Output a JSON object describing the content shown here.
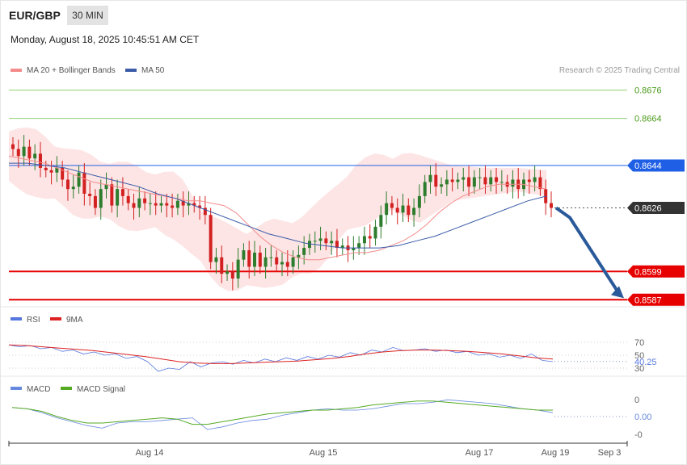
{
  "header": {
    "symbol": "EUR/GBP",
    "timeframe": "30 MIN",
    "timestamp": "Monday, August 18, 2025 10:45:51 AM CET",
    "credit": "Research © 2025 Trading Central"
  },
  "colors": {
    "ma20": "#f48b8b",
    "ma50": "#3b5ca8",
    "band_fill": "#fde0e0",
    "resistance": "#8fcf6f",
    "pivot": "#1f5fe6",
    "support": "#e60000",
    "current": "#333333",
    "arrow": "#2a5a9a",
    "rsi": "#5577dd",
    "rsi_ma": "#dd2222",
    "macd": "#6688dd",
    "macd_signal": "#55aa22",
    "candle_up": "#2e7d2e",
    "candle_down": "#d32020"
  },
  "legend": {
    "ma20": "MA 20 + Bollinger Bands",
    "ma50": "MA 50",
    "rsi": "RSI",
    "rsi_ma": "9MA",
    "macd": "MACD",
    "macd_signal": "MACD Signal"
  },
  "chart_data": {
    "type": "candlestick",
    "price_range": [
      0.8584,
      0.868
    ],
    "price_levels": [
      {
        "label": "0.8676",
        "value": 0.8676,
        "kind": "resistance"
      },
      {
        "label": "0.8664",
        "value": 0.8664,
        "kind": "resistance"
      },
      {
        "label": "0.8644",
        "value": 0.8644,
        "kind": "pivot"
      },
      {
        "label": "0.8626",
        "value": 0.8626,
        "kind": "current"
      },
      {
        "label": "0.8599",
        "value": 0.8599,
        "kind": "support"
      },
      {
        "label": "0.8587",
        "value": 0.8587,
        "kind": "support"
      }
    ],
    "price_path": [
      0.8651,
      0.8648,
      0.8652,
      0.8647,
      0.8649,
      0.8643,
      0.8642,
      0.8641,
      0.8643,
      0.8638,
      0.8634,
      0.8635,
      0.8641,
      0.8632,
      0.8631,
      0.8626,
      0.8634,
      0.8636,
      0.8627,
      0.8634,
      0.8631,
      0.8628,
      0.8626,
      0.863,
      0.8628,
      0.8628,
      0.8627,
      0.8628,
      0.8627,
      0.8626,
      0.8629,
      0.8627,
      0.8628,
      0.8627,
      0.8626,
      0.8623,
      0.8603,
      0.8605,
      0.8598,
      0.8599,
      0.8596,
      0.8604,
      0.8608,
      0.8601,
      0.8607,
      0.8601,
      0.8605,
      0.8605,
      0.8602,
      0.8603,
      0.8601,
      0.8605,
      0.8606,
      0.8609,
      0.8612,
      0.8612,
      0.8613,
      0.8611,
      0.8612,
      0.8609,
      0.861,
      0.8608,
      0.8609,
      0.8611,
      0.8614,
      0.8613,
      0.8618,
      0.8623,
      0.8628,
      0.8626,
      0.8624,
      0.8627,
      0.8623,
      0.8626,
      0.8631,
      0.8637,
      0.864,
      0.8635,
      0.8636,
      0.8638,
      0.8637,
      0.8638,
      0.8639,
      0.8635,
      0.8639,
      0.8639,
      0.8636,
      0.8639,
      0.8637,
      0.8637,
      0.8635,
      0.8638,
      0.8634,
      0.8638,
      0.8637,
      0.8639,
      0.8634,
      0.8628,
      0.8626
    ],
    "ma20": [
      0.8648,
      0.8647,
      0.8646,
      0.8645,
      0.8643,
      0.8641,
      0.8639,
      0.8637,
      0.8636,
      0.8635,
      0.8634,
      0.8633,
      0.8632,
      0.8631,
      0.863,
      0.8629,
      0.8629,
      0.8628,
      0.8627,
      0.8624,
      0.8619,
      0.8614,
      0.861,
      0.8607,
      0.8605,
      0.8604,
      0.8604,
      0.8605,
      0.8606,
      0.8607,
      0.8607,
      0.8608,
      0.861,
      0.8612,
      0.8615,
      0.8619,
      0.8624,
      0.8628,
      0.8631,
      0.8633,
      0.8635,
      0.8636,
      0.8636,
      0.8636,
      0.8635,
      0.8634
    ],
    "ma50": [
      0.8645,
      0.8645,
      0.8644,
      0.8643,
      0.8641,
      0.8639,
      0.8637,
      0.8635,
      0.8632,
      0.863,
      0.8627,
      0.8624,
      0.8621,
      0.8618,
      0.8615,
      0.8613,
      0.8611,
      0.861,
      0.8609,
      0.8609,
      0.8609,
      0.861,
      0.8612,
      0.8614,
      0.8617,
      0.862,
      0.8623,
      0.8626,
      0.8629,
      0.8631
    ],
    "forecast": {
      "from": 0.8626,
      "to": 0.8588
    },
    "rsi": {
      "current_label": "40.25",
      "current": 40.25,
      "levels": [
        {
          "label": "70",
          "value": 70
        },
        {
          "label": "50",
          "value": 50
        },
        {
          "label": "30",
          "value": 30
        }
      ],
      "range": [
        20,
        100
      ],
      "rsi_path": [
        66,
        63,
        65,
        60,
        62,
        56,
        58,
        52,
        55,
        50,
        52,
        45,
        48,
        40,
        25,
        30,
        28,
        40,
        32,
        38,
        40,
        36,
        42,
        38,
        44,
        40,
        46,
        42,
        48,
        44,
        50,
        47,
        54,
        50,
        58,
        55,
        62,
        57,
        58,
        60,
        56,
        58,
        54,
        56,
        50,
        52,
        47,
        50,
        45,
        52,
        42,
        40
      ],
      "ma_path": [
        66,
        65,
        63,
        61,
        59,
        57,
        54,
        51,
        48,
        44,
        40,
        38,
        37,
        37,
        38,
        39,
        40,
        41,
        43,
        45,
        48,
        52,
        55,
        57,
        58,
        58,
        57,
        56,
        54,
        52,
        49,
        46,
        44
      ]
    },
    "macd": {
      "current_label": "0.00",
      "labels": [
        "0",
        "0.00",
        "-0"
      ],
      "macd_path": [
        0.7,
        0.6,
        0.3,
        -0.1,
        -0.4,
        -0.7,
        -0.9,
        -0.5,
        -0.4,
        -0.4,
        -0.3,
        -0.2,
        -0.1,
        -1.0,
        -0.8,
        -0.5,
        -0.3,
        -0.2,
        0.1,
        0.3,
        0.5,
        0.6,
        0.5,
        0.5,
        0.6,
        0.8,
        1.0,
        1.0,
        1.1,
        1.3,
        1.2,
        1.1,
        1.0,
        0.8,
        0.6,
        0.5,
        0.3
      ],
      "signal_path": [
        0.7,
        0.6,
        0.4,
        0.0,
        -0.3,
        -0.5,
        -0.5,
        -0.4,
        -0.3,
        -0.2,
        -0.1,
        -0.2,
        -0.6,
        -0.6,
        -0.4,
        -0.2,
        0.0,
        0.2,
        0.3,
        0.4,
        0.5,
        0.5,
        0.6,
        0.7,
        0.9,
        1.0,
        1.1,
        1.2,
        1.2,
        1.1,
        1.0,
        0.9,
        0.8,
        0.7,
        0.6,
        0.5,
        0.5
      ]
    },
    "x_labels": [
      "Aug 14",
      "Aug 15",
      "Aug 17",
      "Aug 19",
      "Sep 3"
    ]
  }
}
